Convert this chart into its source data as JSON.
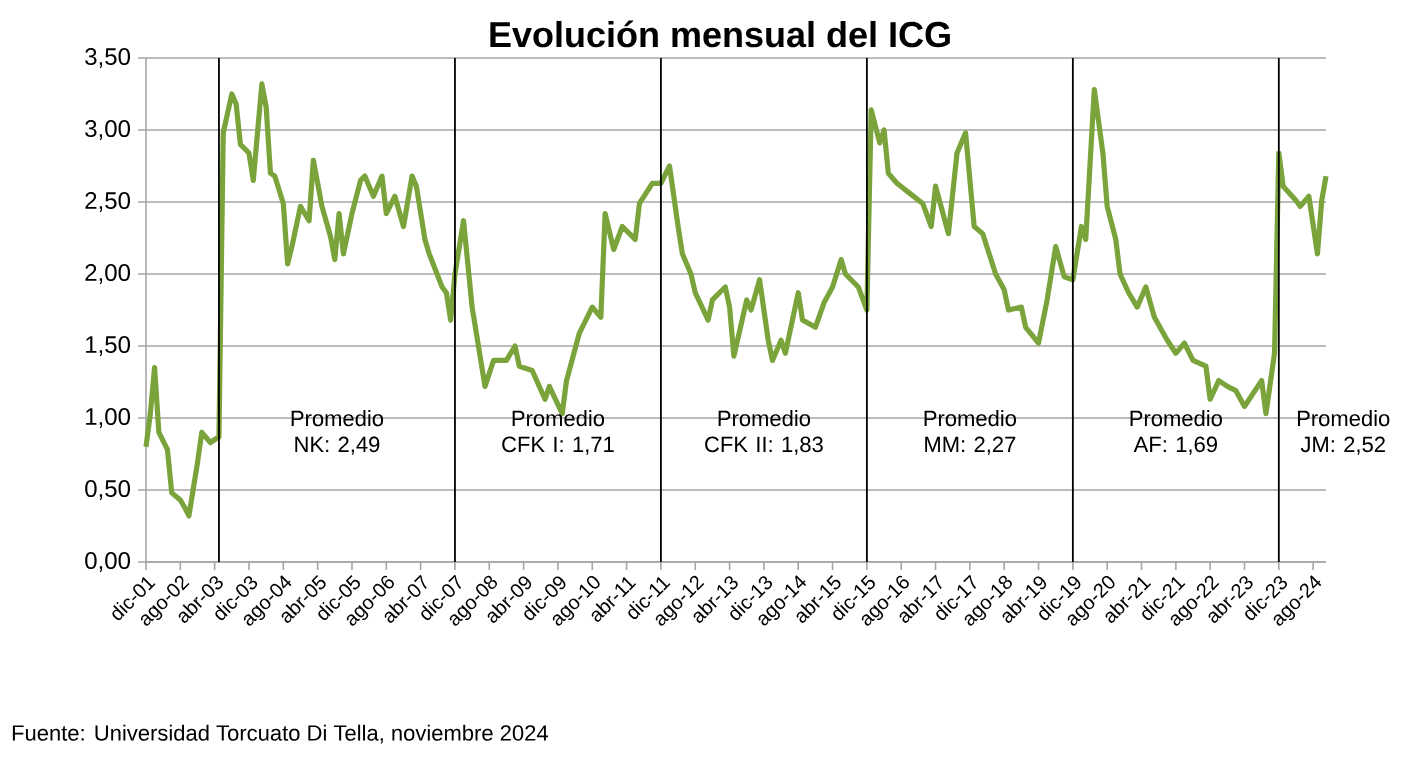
{
  "chart_data": {
    "type": "line",
    "title": "Evolución mensual del ICG",
    "x": [
      "2001-12",
      "2002-01",
      "2002-02",
      "2002-03",
      "2002-05",
      "2002-06",
      "2002-08",
      "2002-09",
      "2002-10",
      "2002-12",
      "2003-01",
      "2003-03",
      "2003-05",
      "2003-06",
      "2003-08",
      "2003-09",
      "2003-10",
      "2003-12",
      "2004-01",
      "2004-03",
      "2004-04",
      "2004-05",
      "2004-06",
      "2004-08",
      "2004-09",
      "2004-10",
      "2004-12",
      "2005-02",
      "2005-03",
      "2005-05",
      "2005-07",
      "2005-08",
      "2005-09",
      "2005-10",
      "2005-12",
      "2006-02",
      "2006-03",
      "2006-05",
      "2006-07",
      "2006-08",
      "2006-10",
      "2006-12",
      "2007-02",
      "2007-03",
      "2007-05",
      "2007-06",
      "2007-09",
      "2007-10",
      "2007-11",
      "2007-12",
      "2008-02",
      "2008-04",
      "2008-07",
      "2008-09",
      "2008-12",
      "2009-02",
      "2009-03",
      "2009-06",
      "2009-09",
      "2009-10",
      "2010-01",
      "2010-02",
      "2010-05",
      "2010-08",
      "2010-10",
      "2010-11",
      "2011-01",
      "2011-03",
      "2011-06",
      "2011-07",
      "2011-10",
      "2011-12",
      "2012-02",
      "2012-04",
      "2012-05",
      "2012-07",
      "2012-08",
      "2012-11",
      "2012-12",
      "2013-03",
      "2013-04",
      "2013-05",
      "2013-08",
      "2013-09",
      "2013-11",
      "2014-01",
      "2014-02",
      "2014-04",
      "2014-05",
      "2014-08",
      "2014-09",
      "2014-12",
      "2015-02",
      "2015-04",
      "2015-06",
      "2015-07",
      "2015-10",
      "2015-12",
      "2016-01",
      "2016-03",
      "2016-04",
      "2016-05",
      "2016-07",
      "2016-10",
      "2017-01",
      "2017-03",
      "2017-04",
      "2017-07",
      "2017-09",
      "2017-11",
      "2018-01",
      "2018-03",
      "2018-06",
      "2018-08",
      "2018-09",
      "2018-12",
      "2019-01",
      "2019-04",
      "2019-06",
      "2019-08",
      "2019-10",
      "2019-12",
      "2020-02",
      "2020-03",
      "2020-05",
      "2020-07",
      "2020-08",
      "2020-10",
      "2020-11",
      "2021-01",
      "2021-03",
      "2021-05",
      "2021-07",
      "2021-10",
      "2021-12",
      "2022-02",
      "2022-04",
      "2022-07",
      "2022-08",
      "2022-10",
      "2022-12",
      "2023-02",
      "2023-04",
      "2023-06",
      "2023-08",
      "2023-09",
      "2023-11",
      "2023-12",
      "2024-01",
      "2024-04",
      "2024-05",
      "2024-07",
      "2024-09",
      "2024-10",
      "2024-11"
    ],
    "values": [
      0.8,
      1.03,
      1.35,
      0.9,
      0.78,
      0.48,
      0.43,
      0.38,
      0.32,
      0.69,
      0.9,
      0.83,
      0.87,
      2.98,
      3.25,
      3.18,
      2.9,
      2.84,
      2.65,
      3.32,
      3.16,
      2.7,
      2.68,
      2.49,
      2.07,
      2.19,
      2.47,
      2.37,
      2.79,
      2.47,
      2.26,
      2.1,
      2.42,
      2.14,
      2.42,
      2.65,
      2.68,
      2.54,
      2.68,
      2.42,
      2.54,
      2.33,
      2.68,
      2.61,
      2.24,
      2.14,
      1.91,
      1.87,
      1.68,
      2.0,
      2.37,
      1.77,
      1.22,
      1.4,
      1.4,
      1.5,
      1.36,
      1.33,
      1.13,
      1.22,
      1.03,
      1.26,
      1.59,
      1.77,
      1.7,
      2.42,
      2.17,
      2.33,
      2.24,
      2.49,
      2.63,
      2.63,
      2.75,
      2.33,
      2.14,
      2.0,
      1.87,
      1.68,
      1.82,
      1.91,
      1.77,
      1.43,
      1.82,
      1.75,
      1.96,
      1.54,
      1.4,
      1.54,
      1.45,
      1.87,
      1.68,
      1.63,
      1.8,
      1.91,
      2.1,
      2.0,
      1.91,
      1.75,
      3.14,
      2.91,
      3.0,
      2.7,
      2.63,
      2.56,
      2.49,
      2.33,
      2.61,
      2.28,
      2.84,
      2.98,
      2.33,
      2.28,
      2.0,
      1.89,
      1.75,
      1.77,
      1.63,
      1.52,
      1.82,
      2.19,
      1.98,
      1.96,
      2.33,
      2.24,
      3.28,
      2.84,
      2.47,
      2.24,
      2.0,
      1.87,
      1.77,
      1.91,
      1.7,
      1.54,
      1.45,
      1.52,
      1.4,
      1.36,
      1.13,
      1.26,
      1.22,
      1.19,
      1.08,
      1.17,
      1.26,
      1.03,
      1.45,
      2.84,
      2.61,
      2.51,
      2.47,
      2.54,
      2.14,
      2.51,
      2.68
    ],
    "color": "#7aa43b",
    "xlim": [
      "2001-12",
      "2024-11"
    ],
    "xticks": [
      {
        "value": "2001-12",
        "label": "dic-01"
      },
      {
        "value": "2002-08",
        "label": "ago-02"
      },
      {
        "value": "2003-04",
        "label": "abr-03"
      },
      {
        "value": "2003-12",
        "label": "dic-03"
      },
      {
        "value": "2004-08",
        "label": "ago-04"
      },
      {
        "value": "2005-04",
        "label": "abr-05"
      },
      {
        "value": "2005-12",
        "label": "dic-05"
      },
      {
        "value": "2006-08",
        "label": "ago-06"
      },
      {
        "value": "2007-04",
        "label": "abr-07"
      },
      {
        "value": "2007-12",
        "label": "dic-07"
      },
      {
        "value": "2008-08",
        "label": "ago-08"
      },
      {
        "value": "2009-04",
        "label": "abr-09"
      },
      {
        "value": "2009-12",
        "label": "dic-09"
      },
      {
        "value": "2010-08",
        "label": "ago-10"
      },
      {
        "value": "2011-04",
        "label": "abr-11"
      },
      {
        "value": "2011-12",
        "label": "dic-11"
      },
      {
        "value": "2012-08",
        "label": "ago-12"
      },
      {
        "value": "2013-04",
        "label": "abr-13"
      },
      {
        "value": "2013-12",
        "label": "dic-13"
      },
      {
        "value": "2014-08",
        "label": "ago-14"
      },
      {
        "value": "2015-04",
        "label": "abr-15"
      },
      {
        "value": "2015-12",
        "label": "dic-15"
      },
      {
        "value": "2016-08",
        "label": "ago-16"
      },
      {
        "value": "2017-04",
        "label": "abr-17"
      },
      {
        "value": "2017-12",
        "label": "dic-17"
      },
      {
        "value": "2018-08",
        "label": "ago-18"
      },
      {
        "value": "2019-04",
        "label": "abr-19"
      },
      {
        "value": "2019-12",
        "label": "dic-19"
      },
      {
        "value": "2020-08",
        "label": "ago-20"
      },
      {
        "value": "2021-04",
        "label": "abr-21"
      },
      {
        "value": "2021-12",
        "label": "dic-21"
      },
      {
        "value": "2022-08",
        "label": "ago-22"
      },
      {
        "value": "2023-04",
        "label": "abr-23"
      },
      {
        "value": "2023-12",
        "label": "dic-23"
      },
      {
        "value": "2024-08",
        "label": "ago-24"
      }
    ],
    "ylim": [
      0,
      3.5
    ],
    "yticks": [
      {
        "value": 0,
        "label": "0,00"
      },
      {
        "value": 0.5,
        "label": "0,50"
      },
      {
        "value": 1,
        "label": "1,00"
      },
      {
        "value": 1.5,
        "label": "1,50"
      },
      {
        "value": 2,
        "label": "2,00"
      },
      {
        "value": 2.5,
        "label": "2,50"
      },
      {
        "value": 3,
        "label": "3,00"
      },
      {
        "value": 3.5,
        "label": "3,50"
      }
    ],
    "grid": "y",
    "ref_lines": [
      {
        "axis": "x",
        "value": "2003-05",
        "color": "#000000"
      },
      {
        "axis": "x",
        "value": "2007-12",
        "color": "#000000"
      },
      {
        "axis": "x",
        "value": "2011-12",
        "color": "#000000"
      },
      {
        "axis": "x",
        "value": "2015-12",
        "color": "#000000"
      },
      {
        "axis": "x",
        "value": "2019-12",
        "color": "#000000"
      },
      {
        "axis": "x",
        "value": "2023-12",
        "color": "#000000"
      }
    ],
    "annotations": [
      "Promedio NK: 2,49",
      "Promedio CFK I: 1,71",
      "Promedio CFK II: 1,83",
      "Promedio MM: 2,27",
      "Promedio AF: 1,69",
      "Promedio JM: 2,52",
      "Fuente: Universidad Torcuato Di Tella, noviembre 2024"
    ]
  }
}
